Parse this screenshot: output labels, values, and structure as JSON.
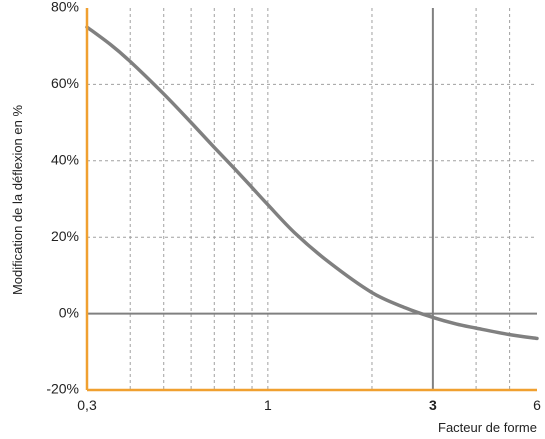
{
  "chart_data": {
    "type": "line",
    "xlabel": "Facteur de forme",
    "ylabel": "Modification de la déflexion en %",
    "x_scale": "log",
    "xlim": [
      0.3,
      6
    ],
    "ylim": [
      -20,
      80
    ],
    "x_ticks": [
      {
        "value": 0.3,
        "label": "0,3",
        "bold": false
      },
      {
        "value": 1,
        "label": "1",
        "bold": false
      },
      {
        "value": 3,
        "label": "3",
        "bold": true
      },
      {
        "value": 6,
        "label": "6",
        "bold": false
      }
    ],
    "y_ticks": [
      {
        "value": 80,
        "label": "80%"
      },
      {
        "value": 60,
        "label": "60%"
      },
      {
        "value": 40,
        "label": "40%"
      },
      {
        "value": 20,
        "label": "20%"
      },
      {
        "value": 0,
        "label": "0%"
      },
      {
        "value": -20,
        "label": "-20%"
      }
    ],
    "x_gridlines": [
      0.4,
      0.5,
      0.6,
      0.7,
      0.8,
      0.9,
      1,
      2,
      3,
      4,
      5
    ],
    "y_gridlines": [
      60,
      40,
      20
    ],
    "reference_lines": {
      "x": 3,
      "y": 0
    },
    "grid": true,
    "series": [
      {
        "x": [
          0.3,
          0.35,
          0.4,
          0.5,
          0.6,
          0.7,
          0.8,
          0.9,
          1.0,
          1.2,
          1.5,
          2.0,
          2.5,
          3.0,
          3.5,
          4.0,
          5.0,
          6.0
        ],
        "y": [
          75,
          70.5,
          66,
          57.5,
          50,
          43.5,
          38,
          33,
          28.5,
          21,
          13.5,
          5.5,
          1.5,
          -1,
          -2.7,
          -3.8,
          -5.5,
          -6.5
        ]
      }
    ],
    "colors": {
      "curve": "#808080",
      "reference": "#808080",
      "grid": "#a0a0a0",
      "frame": "#f0a030"
    }
  }
}
